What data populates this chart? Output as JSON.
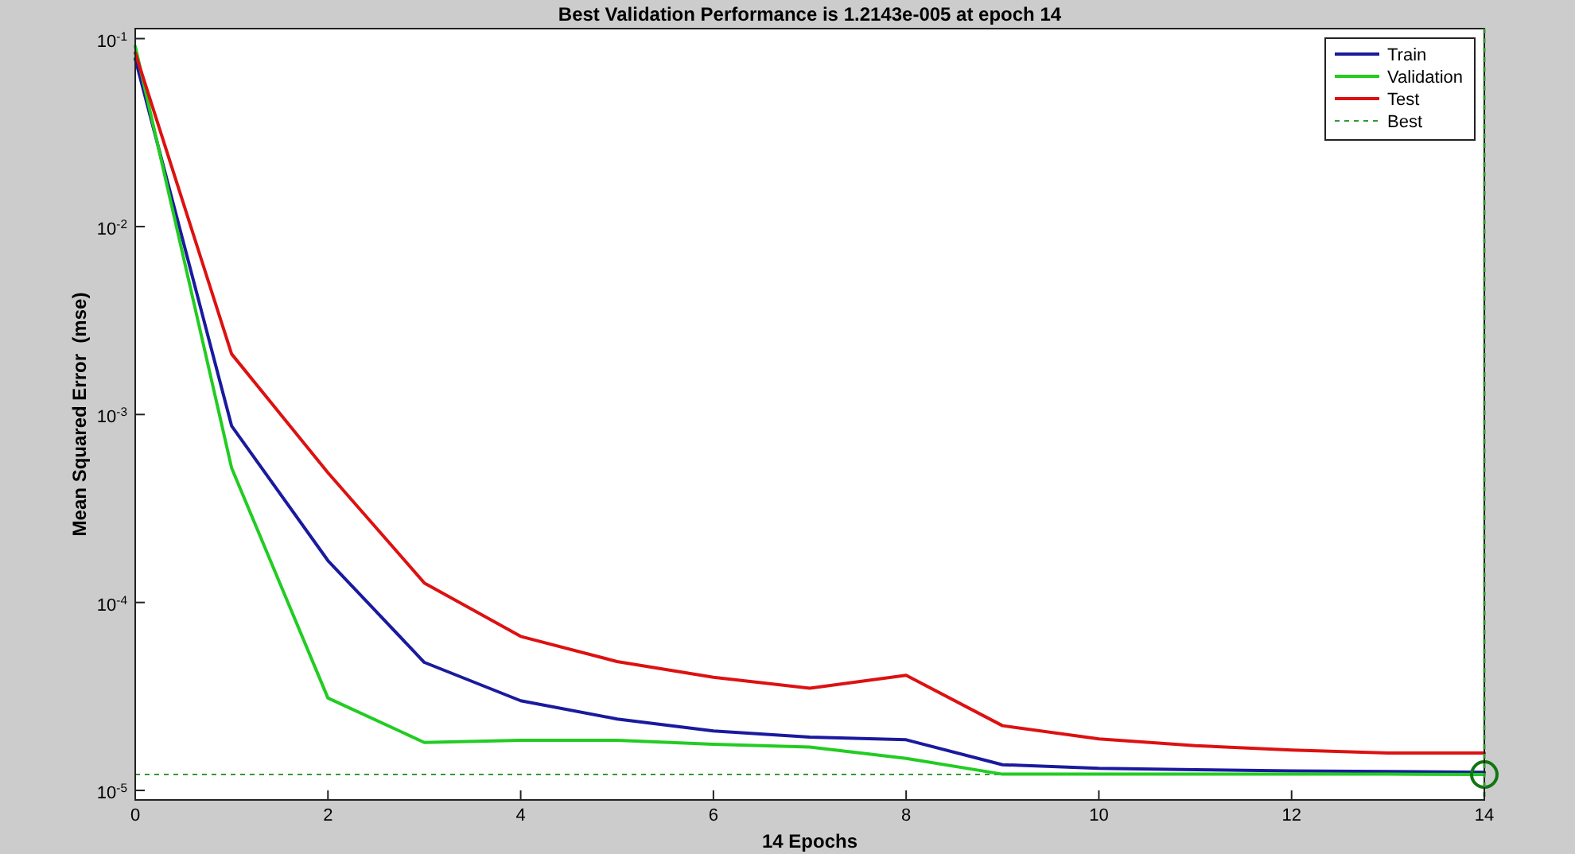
{
  "chart_data": {
    "type": "line",
    "title": "Best Validation Performance is 1.2143e-005 at epoch 14",
    "xlabel": "14 Epochs",
    "ylabel": "Mean Squared Error  (mse)",
    "x": [
      0,
      1,
      2,
      3,
      4,
      5,
      6,
      7,
      8,
      9,
      10,
      11,
      12,
      13,
      14
    ],
    "series": [
      {
        "name": "Train",
        "color": "#1a1a9e",
        "values": [
          0.078,
          0.00087,
          0.000167,
          4.8e-05,
          3e-05,
          2.4e-05,
          2.07e-05,
          1.92e-05,
          1.86e-05,
          1.37e-05,
          1.31e-05,
          1.29e-05,
          1.27e-05,
          1.26e-05,
          1.25e-05
        ]
      },
      {
        "name": "Validation",
        "color": "#22cc22",
        "values": [
          0.091,
          0.00052,
          3.1e-05,
          1.8e-05,
          1.85e-05,
          1.85e-05,
          1.76e-05,
          1.7e-05,
          1.48e-05,
          1.22e-05,
          1.22e-05,
          1.22e-05,
          1.22e-05,
          1.22e-05,
          1.2143e-05
        ]
      },
      {
        "name": "Test",
        "color": "#dd1111",
        "values": [
          0.084,
          0.0021,
          0.00049,
          0.000127,
          6.6e-05,
          4.85e-05,
          4e-05,
          3.5e-05,
          4.1e-05,
          2.21e-05,
          1.88e-05,
          1.73e-05,
          1.64e-05,
          1.58e-05,
          1.58e-05
        ]
      },
      {
        "type": "scatter",
        "marker": "circle",
        "color": "#117711",
        "x": [
          14
        ],
        "values": [
          1.2143e-05
        ]
      }
    ],
    "log": "y",
    "xlim": [
      0,
      14
    ],
    "xticks": [
      0,
      2,
      4,
      6,
      8,
      10,
      12,
      14
    ],
    "ylim": [
      8.9e-06,
      0.113
    ],
    "yticks": [
      {
        "value": 1e-05,
        "label": "10$^{-5}$"
      },
      {
        "value": 0.0001,
        "label": "10$^{-4}$"
      },
      {
        "value": 0.001,
        "label": "10$^{-3}$"
      },
      {
        "value": 0.01,
        "label": "10$^{-2}$"
      },
      {
        "value": 0.1,
        "label": "10$^{-1}$"
      }
    ],
    "ref_lines": [
      {
        "axis": "y",
        "value": 1.2143e-05,
        "label": "Best",
        "color": "#339933",
        "line_style": "dashed"
      },
      {
        "axis": "x",
        "value": 14,
        "color": "#339933",
        "line_style": "dashed"
      }
    ],
    "grid": false,
    "legend": "top right"
  }
}
